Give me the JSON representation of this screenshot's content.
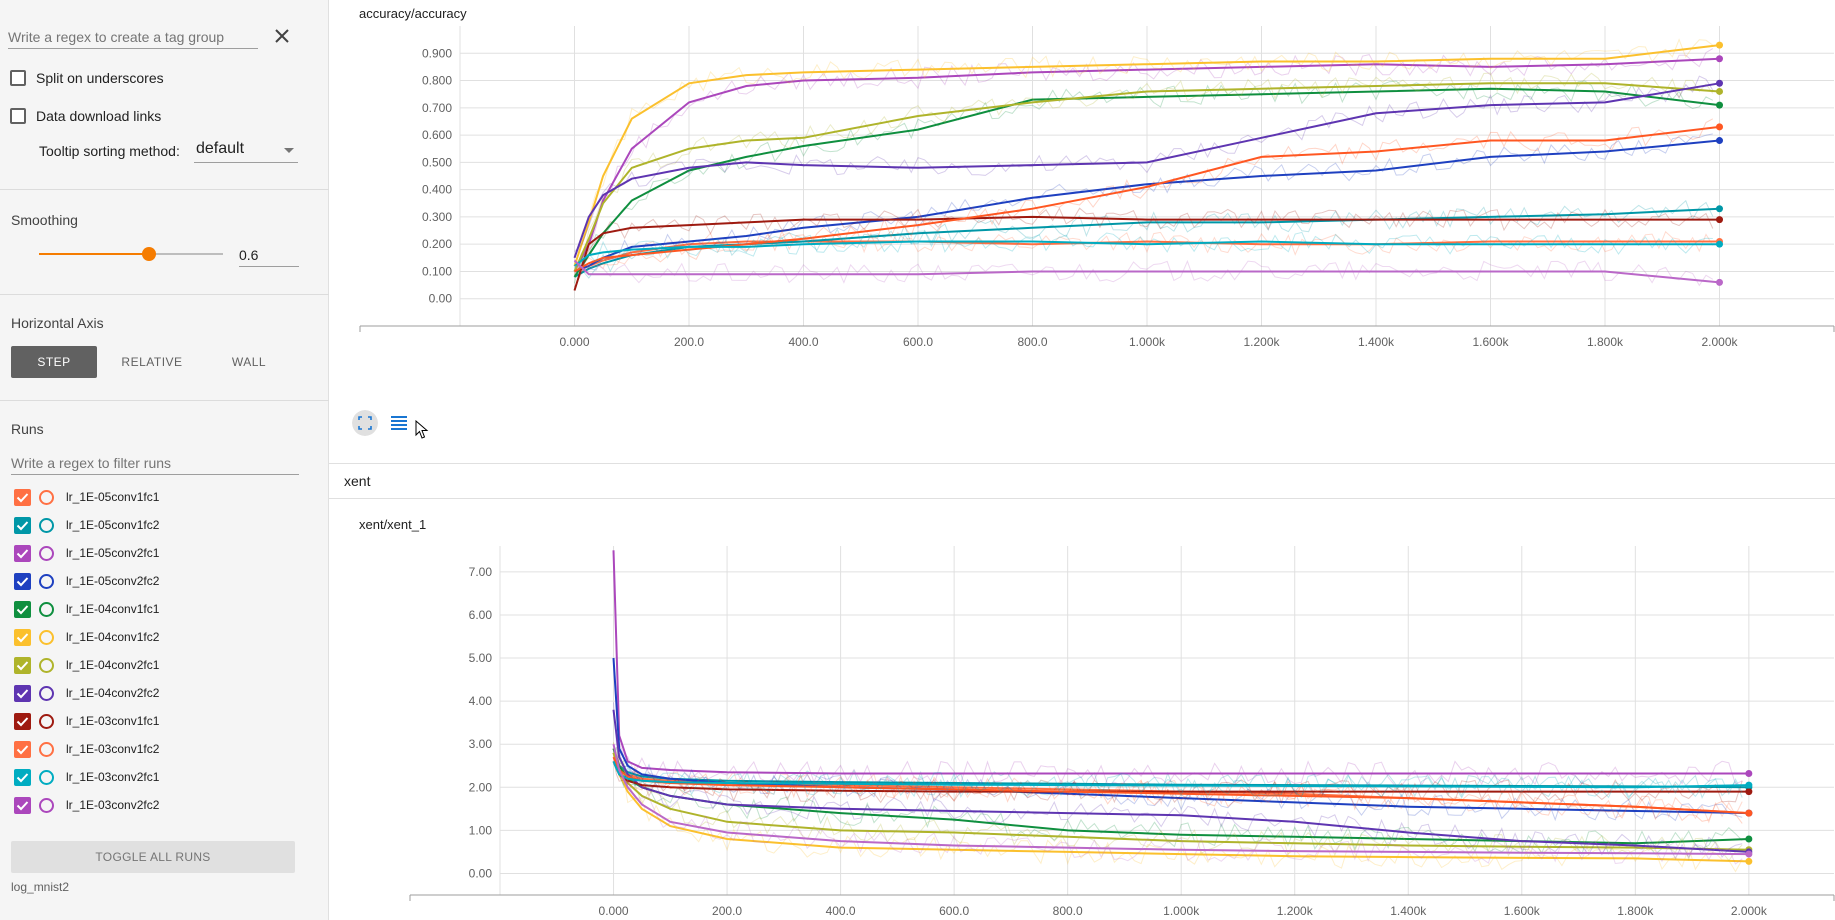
{
  "sidebar": {
    "tag_regex_placeholder": "Write a regex to create a tag group",
    "split_label": "Split on underscores",
    "download_label": "Data download links",
    "tooltip_label": "Tooltip sorting method:",
    "tooltip_value": "default",
    "smoothing_title": "Smoothing",
    "smoothing_value": "0.6",
    "smoothing_fraction": 0.6,
    "axis_title": "Horizontal Axis",
    "axis_buttons": [
      "STEP",
      "RELATIVE",
      "WALL"
    ],
    "axis_selected": "STEP",
    "runs_title": "Runs",
    "runs_filter_placeholder": "Write a regex to filter runs",
    "runs": [
      {
        "name": "lr_1E-05conv1fc1",
        "color": "#ff7043",
        "checked": true
      },
      {
        "name": "lr_1E-05conv1fc2",
        "color": "#0097a7",
        "checked": true
      },
      {
        "name": "lr_1E-05conv2fc1",
        "color": "#ab47bc",
        "checked": true
      },
      {
        "name": "lr_1E-05conv2fc2",
        "color": "#1e40c0",
        "checked": true
      },
      {
        "name": "lr_1E-04conv1fc1",
        "color": "#0f8f3f",
        "checked": true
      },
      {
        "name": "lr_1E-04conv1fc2",
        "color": "#fbc02d",
        "checked": true
      },
      {
        "name": "lr_1E-04conv2fc1",
        "color": "#afb42b",
        "checked": true
      },
      {
        "name": "lr_1E-04conv2fc2",
        "color": "#5e35b1",
        "checked": true
      },
      {
        "name": "lr_1E-03conv1fc1",
        "color": "#9e1a10",
        "checked": true
      },
      {
        "name": "lr_1E-03conv1fc2",
        "color": "#ff7043",
        "checked": true
      },
      {
        "name": "lr_1E-03conv2fc1",
        "color": "#00acc1",
        "checked": true
      },
      {
        "name": "lr_1E-03conv2fc2",
        "color": "#ab47bc",
        "checked": true
      }
    ],
    "toggle_label": "TOGGLE ALL RUNS",
    "log_dir": "log_mnist2"
  },
  "main": {
    "section_label": "xent"
  },
  "chart_data": [
    {
      "type": "line",
      "title": "accuracy/accuracy",
      "xlabel": "",
      "ylabel": "",
      "x_ticks": [
        "0.000",
        "200.0",
        "400.0",
        "600.0",
        "800.0",
        "1.000k",
        "1.200k",
        "1.400k",
        "1.600k",
        "1.800k",
        "2.000k"
      ],
      "y_ticks": [
        "0.00",
        "0.100",
        "0.200",
        "0.300",
        "0.400",
        "0.500",
        "0.600",
        "0.700",
        "0.800",
        "0.900"
      ],
      "xlim": [
        -200,
        2200
      ],
      "ylim": [
        -0.1,
        1.0
      ],
      "grid": true,
      "x": [
        0,
        25,
        50,
        100,
        200,
        300,
        400,
        600,
        800,
        1000,
        1200,
        1400,
        1600,
        1800,
        2000
      ],
      "series": [
        {
          "color": "#ff7043",
          "values": [
            0.1,
            0.12,
            0.14,
            0.17,
            0.2,
            0.21,
            0.21,
            0.21,
            0.2,
            0.21,
            0.2,
            0.2,
            0.21,
            0.21,
            0.21
          ]
        },
        {
          "color": "#0097a7",
          "values": [
            0.08,
            0.11,
            0.13,
            0.16,
            0.19,
            0.2,
            0.21,
            0.24,
            0.26,
            0.28,
            0.28,
            0.29,
            0.3,
            0.31,
            0.33
          ]
        },
        {
          "color": "#ab47bc",
          "values": [
            0.1,
            0.2,
            0.36,
            0.55,
            0.72,
            0.78,
            0.8,
            0.81,
            0.83,
            0.84,
            0.85,
            0.86,
            0.85,
            0.86,
            0.88
          ]
        },
        {
          "color": "#1e40c0",
          "values": [
            0.1,
            0.12,
            0.15,
            0.19,
            0.21,
            0.23,
            0.26,
            0.3,
            0.37,
            0.42,
            0.45,
            0.47,
            0.52,
            0.54,
            0.58
          ]
        },
        {
          "color": "#0f8f3f",
          "values": [
            0.08,
            0.16,
            0.24,
            0.36,
            0.47,
            0.52,
            0.56,
            0.62,
            0.73,
            0.74,
            0.75,
            0.76,
            0.77,
            0.76,
            0.71
          ]
        },
        {
          "color": "#fbc02d",
          "values": [
            0.12,
            0.28,
            0.45,
            0.66,
            0.79,
            0.82,
            0.83,
            0.84,
            0.85,
            0.86,
            0.87,
            0.87,
            0.88,
            0.88,
            0.93
          ]
        },
        {
          "color": "#afb42b",
          "values": [
            0.1,
            0.22,
            0.35,
            0.48,
            0.55,
            0.58,
            0.59,
            0.67,
            0.72,
            0.76,
            0.77,
            0.78,
            0.79,
            0.79,
            0.76
          ]
        },
        {
          "color": "#5e35b1",
          "values": [
            0.15,
            0.3,
            0.38,
            0.44,
            0.48,
            0.5,
            0.49,
            0.48,
            0.49,
            0.5,
            0.59,
            0.68,
            0.71,
            0.72,
            0.79
          ]
        },
        {
          "color": "#9e1a10",
          "values": [
            0.03,
            0.2,
            0.24,
            0.26,
            0.27,
            0.28,
            0.29,
            0.29,
            0.3,
            0.29,
            0.29,
            0.29,
            0.29,
            0.29,
            0.29
          ]
        },
        {
          "color": "#ff5722",
          "values": [
            0.1,
            0.13,
            0.15,
            0.16,
            0.18,
            0.2,
            0.22,
            0.27,
            0.33,
            0.41,
            0.52,
            0.54,
            0.58,
            0.58,
            0.63
          ]
        },
        {
          "color": "#00acc1",
          "values": [
            0.12,
            0.16,
            0.17,
            0.18,
            0.19,
            0.19,
            0.2,
            0.21,
            0.21,
            0.2,
            0.21,
            0.2,
            0.2,
            0.2,
            0.2
          ]
        },
        {
          "color": "#ba68c8",
          "values": [
            0.14,
            0.09,
            0.09,
            0.09,
            0.09,
            0.09,
            0.09,
            0.09,
            0.1,
            0.1,
            0.1,
            0.1,
            0.1,
            0.1,
            0.06
          ]
        }
      ]
    },
    {
      "type": "line",
      "title": "xent/xent_1",
      "xlabel": "",
      "ylabel": "",
      "x_ticks": [
        "0.000",
        "200.0",
        "400.0",
        "600.0",
        "800.0",
        "1.000k",
        "1.200k",
        "1.400k",
        "1.600k",
        "1.800k",
        "2.000k"
      ],
      "y_ticks": [
        "0.00",
        "1.00",
        "2.00",
        "3.00",
        "4.00",
        "5.00",
        "6.00",
        "7.00"
      ],
      "xlim": [
        -200,
        2150
      ],
      "ylim": [
        -0.5,
        7.6
      ],
      "grid": true,
      "x": [
        0,
        10,
        25,
        50,
        100,
        200,
        400,
        600,
        800,
        1000,
        1200,
        1400,
        1600,
        1800,
        2000
      ],
      "series": [
        {
          "color": "#ff7043",
          "values": [
            2.9,
            2.5,
            2.3,
            2.2,
            2.15,
            2.1,
            2.05,
            2.0,
            1.95,
            1.9,
            1.85,
            1.75,
            1.65,
            1.55,
            1.4
          ]
        },
        {
          "color": "#0097a7",
          "values": [
            2.8,
            2.5,
            2.35,
            2.25,
            2.2,
            2.15,
            2.12,
            2.1,
            2.08,
            2.06,
            2.05,
            2.04,
            2.03,
            2.02,
            2.0
          ]
        },
        {
          "color": "#ab47bc",
          "values": [
            7.5,
            3.2,
            2.6,
            2.45,
            2.4,
            2.35,
            2.32,
            2.32,
            2.32,
            2.32,
            2.32,
            2.32,
            2.32,
            2.32,
            2.32
          ]
        },
        {
          "color": "#1e40c0",
          "values": [
            5.0,
            2.9,
            2.5,
            2.3,
            2.2,
            2.1,
            2.0,
            1.95,
            1.85,
            1.75,
            1.65,
            1.55,
            1.5,
            1.45,
            1.4
          ]
        },
        {
          "color": "#0f8f3f",
          "values": [
            2.9,
            2.5,
            2.2,
            2.0,
            1.8,
            1.6,
            1.4,
            1.25,
            1.0,
            0.9,
            0.85,
            0.8,
            0.75,
            0.7,
            0.8
          ]
        },
        {
          "color": "#fbc02d",
          "values": [
            2.8,
            2.3,
            1.9,
            1.5,
            1.1,
            0.8,
            0.6,
            0.55,
            0.5,
            0.45,
            0.4,
            0.38,
            0.36,
            0.35,
            0.28
          ]
        },
        {
          "color": "#afb42b",
          "values": [
            2.8,
            2.4,
            2.1,
            1.8,
            1.5,
            1.2,
            1.0,
            0.95,
            0.85,
            0.75,
            0.7,
            0.65,
            0.62,
            0.6,
            0.55
          ]
        },
        {
          "color": "#5e35b1",
          "values": [
            3.8,
            2.7,
            2.3,
            2.0,
            1.8,
            1.6,
            1.5,
            1.45,
            1.4,
            1.35,
            1.2,
            0.95,
            0.75,
            0.65,
            0.5
          ]
        },
        {
          "color": "#9e1a10",
          "values": [
            2.6,
            2.3,
            2.15,
            2.05,
            2.0,
            1.95,
            1.92,
            1.9,
            1.9,
            1.9,
            1.9,
            1.9,
            1.9,
            1.9,
            1.9
          ]
        },
        {
          "color": "#ff5722",
          "values": [
            2.7,
            2.4,
            2.25,
            2.15,
            2.1,
            2.05,
            2.0,
            1.95,
            1.9,
            1.85,
            1.8,
            1.75,
            1.65,
            1.55,
            1.4
          ]
        },
        {
          "color": "#00acc1",
          "values": [
            2.6,
            2.3,
            2.2,
            2.15,
            2.12,
            2.1,
            2.08,
            2.06,
            2.05,
            2.04,
            2.03,
            2.02,
            2.01,
            2.0,
            2.05
          ]
        },
        {
          "color": "#ba68c8",
          "values": [
            3.0,
            2.4,
            2.0,
            1.6,
            1.2,
            0.95,
            0.75,
            0.65,
            0.6,
            0.55,
            0.52,
            0.5,
            0.48,
            0.47,
            0.45
          ]
        }
      ]
    }
  ]
}
